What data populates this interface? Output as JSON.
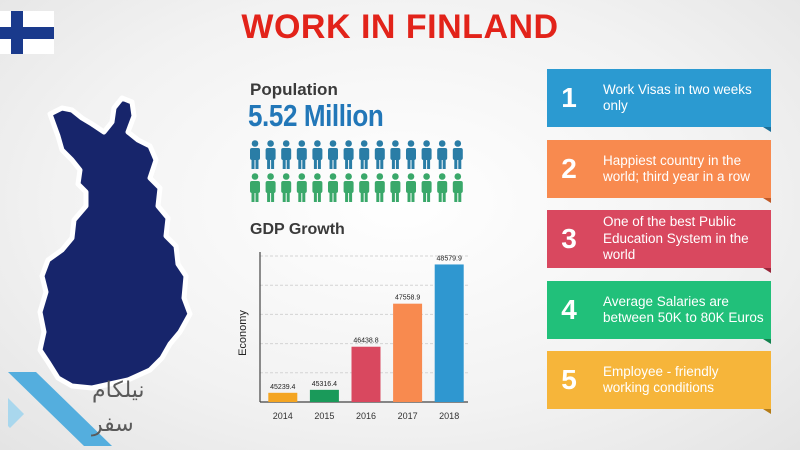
{
  "title": "WORK IN FINLAND",
  "population": {
    "label": "Population",
    "value": "5.52 Million"
  },
  "gdp_label": "GDP Growth",
  "chart_data": {
    "type": "bar",
    "categories": [
      "2014",
      "2015",
      "2016",
      "2017",
      "2018"
    ],
    "values": [
      45239.4,
      45316.4,
      46438.8,
      47558.9,
      48579.9
    ],
    "value_labels": [
      "45239.4",
      "45316.4",
      "46438.8",
      "47558.9",
      "48579.9"
    ],
    "colors": [
      "#f4a522",
      "#1a9a5a",
      "#d9485f",
      "#f88a4f",
      "#2f97d0"
    ],
    "ylabel": "Economy",
    "xlabel": "",
    "ylim": [
      45000,
      48800
    ],
    "grid": true
  },
  "cards": [
    {
      "num": "1",
      "text": "Work Visas in two weeks only",
      "color": "#2b9ad1",
      "dark": "#1a6f99"
    },
    {
      "num": "2",
      "text": "Happiest country in the world; third year in a row",
      "color": "#f88a4f",
      "dark": "#c15a28"
    },
    {
      "num": "3",
      "text": "One of the best Public Education System in the world",
      "color": "#d9485f",
      "dark": "#99263a"
    },
    {
      "num": "4",
      "text": "Average Salaries are between 50K to 80K Euros",
      "color": "#21c07a",
      "dark": "#12834f"
    },
    {
      "num": "5",
      "text": "Employee - friendly working conditions",
      "color": "#f6b53a",
      "dark": "#b57c16"
    }
  ],
  "watermark": {
    "line1": "نیلکام",
    "line2": "سفر"
  },
  "colors": {
    "title": "#e2231a",
    "map": "#17256b",
    "pop_value": "#2277b8",
    "people_top": "#2a7da6",
    "people_bottom": "#3aa86a"
  },
  "people_count_per_row": 14
}
